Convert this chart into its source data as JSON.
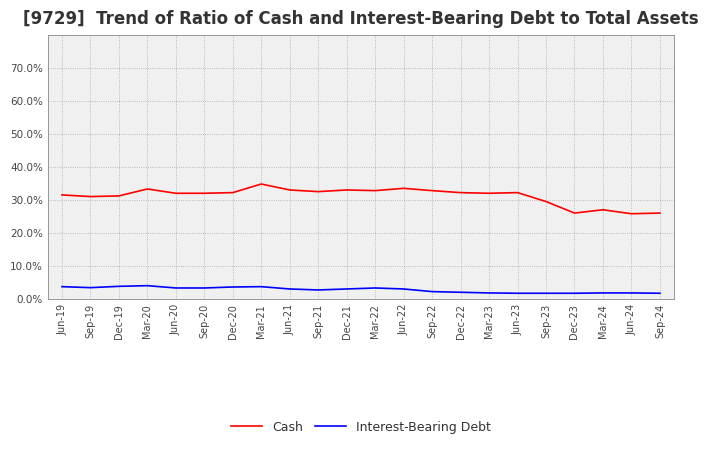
{
  "title": "[9729]  Trend of Ratio of Cash and Interest-Bearing Debt to Total Assets",
  "x_labels": [
    "Jun-19",
    "Sep-19",
    "Dec-19",
    "Mar-20",
    "Jun-20",
    "Sep-20",
    "Dec-20",
    "Mar-21",
    "Jun-21",
    "Sep-21",
    "Dec-21",
    "Mar-22",
    "Jun-22",
    "Sep-22",
    "Dec-22",
    "Mar-23",
    "Jun-23",
    "Sep-23",
    "Dec-23",
    "Mar-24",
    "Jun-24",
    "Sep-24"
  ],
  "cash": [
    0.315,
    0.31,
    0.312,
    0.333,
    0.32,
    0.32,
    0.322,
    0.348,
    0.33,
    0.325,
    0.33,
    0.328,
    0.335,
    0.328,
    0.322,
    0.32,
    0.322,
    0.295,
    0.26,
    0.27,
    0.258,
    0.26
  ],
  "interest_bearing_debt": [
    0.037,
    0.034,
    0.038,
    0.04,
    0.033,
    0.033,
    0.036,
    0.037,
    0.03,
    0.027,
    0.03,
    0.033,
    0.03,
    0.022,
    0.02,
    0.018,
    0.017,
    0.017,
    0.017,
    0.018,
    0.018,
    0.017
  ],
  "cash_color": "#ff0000",
  "debt_color": "#0000ff",
  "ylim": [
    0.0,
    0.8
  ],
  "yticks": [
    0.0,
    0.1,
    0.2,
    0.3,
    0.4,
    0.5,
    0.6,
    0.7
  ],
  "plot_bg_color": "#f0f0f0",
  "fig_bg_color": "#ffffff",
  "grid_color": "#999999",
  "title_fontsize": 12,
  "legend_cash": "Cash",
  "legend_debt": "Interest-Bearing Debt"
}
